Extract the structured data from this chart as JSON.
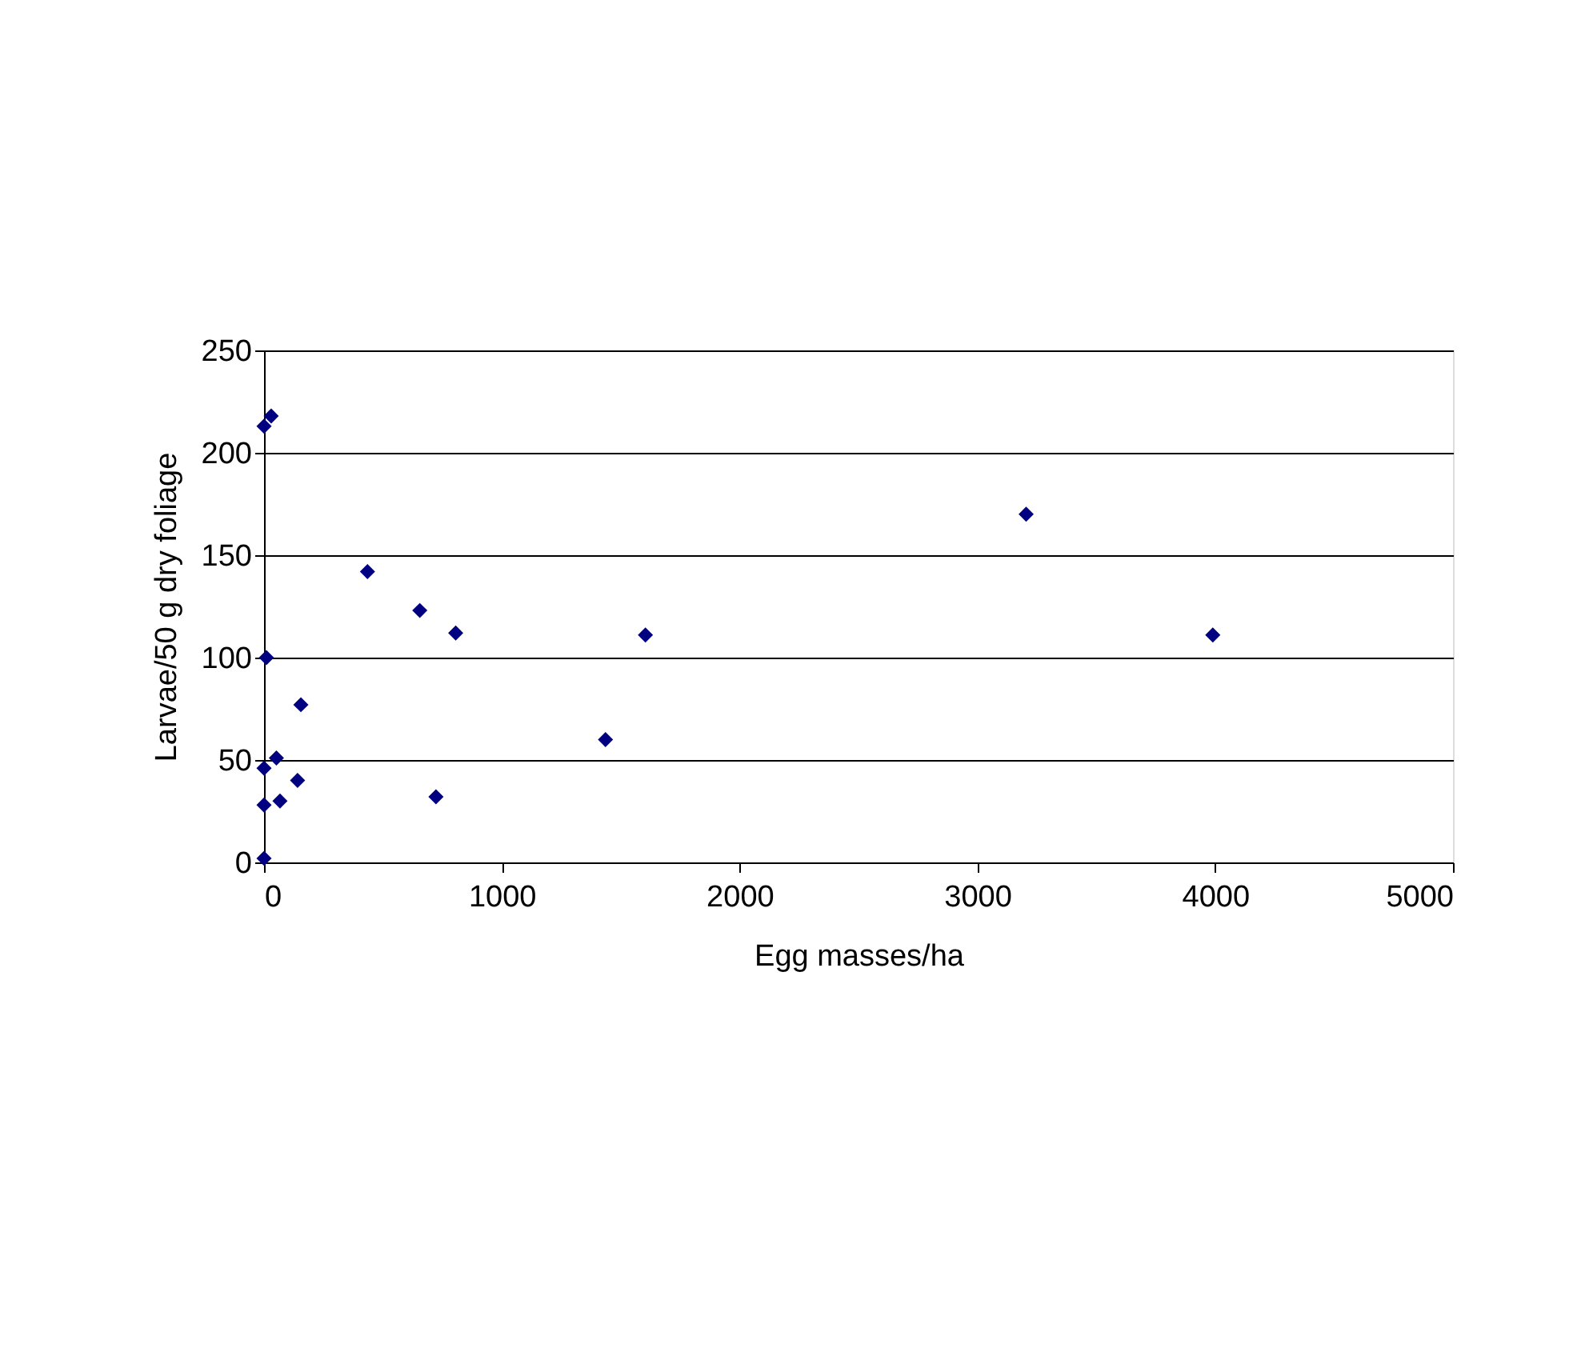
{
  "chart_data": {
    "type": "scatter",
    "xlabel": "Egg masses/ha",
    "ylabel": "Larvae/50 g dry foliage",
    "x": [
      0,
      30,
      435,
      655,
      806,
      10,
      155,
      52,
      0,
      141,
      0,
      67,
      723,
      0,
      1436,
      1604,
      3990,
      3205
    ],
    "series": [
      {
        "color": "#000080",
        "values": [
          213,
          218,
          142,
          123,
          112,
          100,
          77,
          51,
          46,
          40,
          28,
          30,
          32,
          2,
          60,
          111,
          111,
          170
        ]
      }
    ],
    "xlim": [
      0,
      5000
    ],
    "xticks": [
      0,
      1000,
      2000,
      3000,
      4000,
      5000
    ],
    "ylim": [
      0,
      250
    ],
    "yticks": [
      0,
      50,
      100,
      150,
      200,
      250
    ],
    "grid": "y",
    "marker": "diamond"
  }
}
